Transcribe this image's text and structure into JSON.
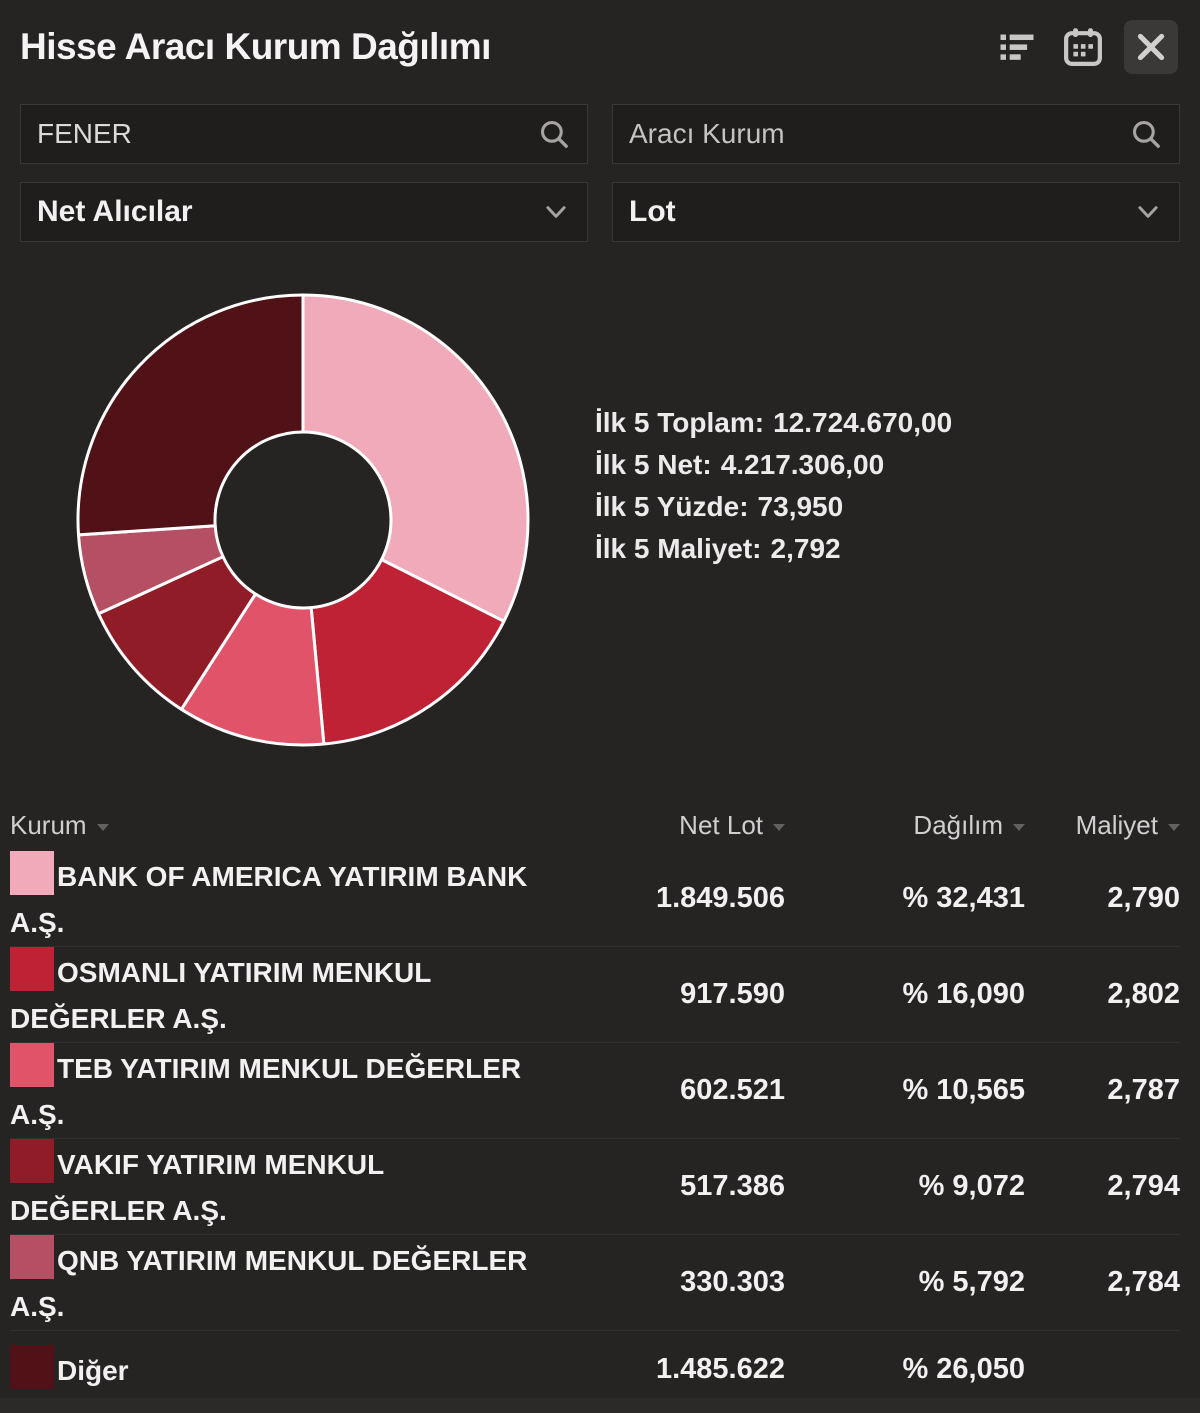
{
  "window": {
    "title": "Hisse Aracı Kurum Dağılımı"
  },
  "icons": {
    "header": [
      "list-view-icon",
      "calendar-icon",
      "close-icon"
    ],
    "search": "search-icon",
    "select": "chevron-down-icon",
    "sort": "sort-caret-icon"
  },
  "filters": {
    "symbol": {
      "value": "FENER"
    },
    "broker": {
      "placeholder": "Aracı Kurum"
    },
    "side": {
      "value": "Net Alıcılar"
    },
    "unit": {
      "value": "Lot"
    }
  },
  "summary": {
    "items": [
      {
        "label": "İlk 5 Toplam:",
        "value": "12.724.670,00"
      },
      {
        "label": "İlk 5 Net:",
        "value": "4.217.306,00"
      },
      {
        "label": "İlk 5 Yüzde:",
        "value": "73,950"
      },
      {
        "label": "İlk 5 Maliyet:",
        "value": "2,792"
      }
    ]
  },
  "chart_data": {
    "type": "pie",
    "subtype": "donut",
    "start_angle_deg": 0,
    "direction": "clockwise",
    "inner_radius_ratio": 0.39,
    "stroke_color": "#ffffff",
    "segments": [
      {
        "label": "BANK OF AMERICA YATIRIM BANK A.Ş.",
        "value_pct": 32.431,
        "color": "#f1aab9"
      },
      {
        "label": "OSMANLI YATIRIM MENKUL DEĞERLER A.Ş.",
        "value_pct": 16.09,
        "color": "#bf2135"
      },
      {
        "label": "TEB YATIRIM MENKUL DEĞERLER A.Ş.",
        "value_pct": 10.565,
        "color": "#e15368"
      },
      {
        "label": "VAKIF YATIRIM MENKUL DEĞERLER A.Ş.",
        "value_pct": 9.072,
        "color": "#8f1c27"
      },
      {
        "label": "QNB YATIRIM MENKUL DEĞERLER A.Ş.",
        "value_pct": 5.792,
        "color": "#b55064"
      },
      {
        "label": "Diğer",
        "value_pct": 26.05,
        "color": "#501216"
      }
    ]
  },
  "table": {
    "columns": [
      {
        "label": "Kurum"
      },
      {
        "label": "Net Lot"
      },
      {
        "label": "Dağılım"
      },
      {
        "label": "Maliyet"
      }
    ],
    "rows": [
      {
        "name": "BANK OF AMERICA YATIRIM BANK A.Ş.",
        "net_lot": "1.849.506",
        "dagilim": "% 32,431",
        "maliyet": "2,790",
        "color": "#f1aab9"
      },
      {
        "name": "OSMANLI YATIRIM MENKUL DEĞERLER A.Ş.",
        "net_lot": "917.590",
        "dagilim": "% 16,090",
        "maliyet": "2,802",
        "color": "#bf2135"
      },
      {
        "name": "TEB YATIRIM MENKUL DEĞERLER A.Ş.",
        "net_lot": "602.521",
        "dagilim": "% 10,565",
        "maliyet": "2,787",
        "color": "#e15368"
      },
      {
        "name": "VAKIF YATIRIM MENKUL DEĞERLER A.Ş.",
        "net_lot": "517.386",
        "dagilim": "% 9,072",
        "maliyet": "2,794",
        "color": "#8f1c27"
      },
      {
        "name": "QNB YATIRIM MENKUL DEĞERLER A.Ş.",
        "net_lot": "330.303",
        "dagilim": "% 5,792",
        "maliyet": "2,784",
        "color": "#b55064"
      },
      {
        "name": "Diğer",
        "net_lot": "1.485.622",
        "dagilim": "% 26,050",
        "maliyet": "",
        "color": "#501216"
      }
    ]
  },
  "colors": {
    "background": "#262323",
    "input_bg": "#201d1d",
    "input_border": "#3b3737",
    "divider": "#332f2f",
    "text": "#f2f0f0",
    "muted_text": "#d2cecf"
  }
}
